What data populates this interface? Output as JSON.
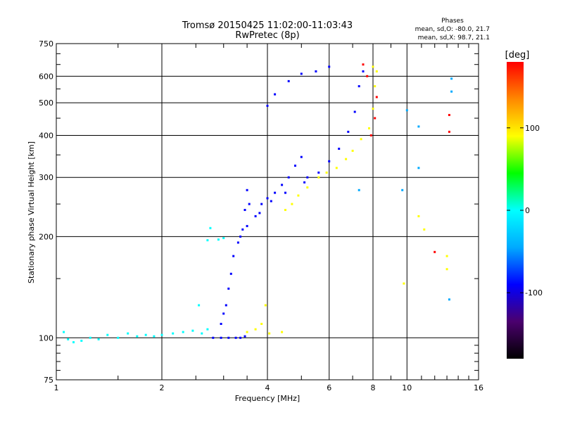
{
  "chart_data": {
    "type": "scatter",
    "title": "Tromsø 20150425 11:02:00-11:03:43",
    "subtitle": "RwPretec (8p)",
    "xlabel": "Frequency [MHz]",
    "ylabel": "Stationary phase Virtual Height [km]",
    "x_scale": "log",
    "y_scale": "log",
    "xlim": [
      1,
      16
    ],
    "ylim": [
      75,
      750
    ],
    "x_ticks": [
      1,
      2,
      4,
      6,
      8,
      10,
      16
    ],
    "y_ticks": [
      75,
      100,
      200,
      300,
      400,
      500,
      600,
      750
    ],
    "grid": true,
    "phases_box": {
      "title": "Phases",
      "line1": "mean, sd,O: -80.0, 21.7",
      "line2": "mean, sd,X:  98.7, 21.1"
    },
    "colorbar": {
      "label": "[deg]",
      "range": [
        -180,
        180
      ],
      "ticks": [
        "100",
        "0",
        "-100"
      ],
      "tick_values": [
        100,
        0,
        -100
      ],
      "colors": [
        "#000000",
        "#4b006e",
        "#0000ff",
        "#00aaff",
        "#00ffff",
        "#00ff00",
        "#ffff00",
        "#ff8800",
        "#ff0000"
      ]
    },
    "series": [
      {
        "points": [
          [
            1.05,
            104
          ],
          [
            1.08,
            99
          ],
          [
            1.12,
            97
          ],
          [
            1.18,
            98
          ],
          [
            1.25,
            100
          ],
          [
            1.32,
            99
          ],
          [
            1.4,
            102
          ],
          [
            1.5,
            100
          ],
          [
            1.6,
            103
          ],
          [
            1.7,
            101
          ],
          [
            1.8,
            102
          ],
          [
            1.9,
            101
          ],
          [
            2.0,
            102
          ],
          [
            2.15,
            103
          ],
          [
            2.3,
            104
          ],
          [
            2.45,
            105
          ],
          [
            2.6,
            103
          ],
          [
            2.7,
            106
          ],
          [
            2.55,
            125
          ],
          [
            2.7,
            195
          ],
          [
            2.75,
            212
          ],
          [
            2.9,
            196
          ],
          [
            3.0,
            198
          ]
        ],
        "phase": -20
      },
      {
        "points": [
          [
            2.8,
            100
          ],
          [
            2.95,
            100
          ],
          [
            3.1,
            100
          ],
          [
            3.25,
            100
          ],
          [
            3.35,
            100
          ],
          [
            3.45,
            101
          ],
          [
            2.95,
            110
          ],
          [
            3.0,
            118
          ],
          [
            3.05,
            125
          ],
          [
            3.1,
            140
          ],
          [
            3.15,
            155
          ],
          [
            3.2,
            175
          ],
          [
            3.3,
            192
          ],
          [
            3.4,
            210
          ],
          [
            3.45,
            240
          ],
          [
            3.5,
            275
          ],
          [
            3.55,
            250
          ],
          [
            3.7,
            230
          ],
          [
            3.85,
            250
          ],
          [
            4.0,
            260
          ],
          [
            4.2,
            270
          ],
          [
            4.4,
            285
          ],
          [
            4.6,
            300
          ],
          [
            4.8,
            325
          ],
          [
            5.0,
            345
          ],
          [
            5.2,
            300
          ],
          [
            5.6,
            310
          ],
          [
            6.0,
            335
          ],
          [
            6.4,
            365
          ],
          [
            6.8,
            410
          ],
          [
            7.1,
            470
          ],
          [
            7.3,
            560
          ],
          [
            7.5,
            620
          ],
          [
            4.0,
            490
          ],
          [
            4.2,
            530
          ],
          [
            4.6,
            580
          ],
          [
            5.0,
            610
          ],
          [
            5.5,
            620
          ],
          [
            6.0,
            640
          ],
          [
            3.35,
            200
          ],
          [
            3.5,
            215
          ],
          [
            3.8,
            235
          ],
          [
            4.1,
            255
          ],
          [
            4.5,
            270
          ],
          [
            5.1,
            290
          ]
        ],
        "phase": -95
      },
      {
        "points": [
          [
            3.5,
            104
          ],
          [
            3.7,
            106
          ],
          [
            3.85,
            110
          ],
          [
            3.95,
            125
          ],
          [
            4.05,
            103
          ],
          [
            4.4,
            104
          ],
          [
            4.5,
            240
          ],
          [
            4.7,
            250
          ],
          [
            4.9,
            265
          ],
          [
            5.2,
            280
          ],
          [
            5.6,
            300
          ],
          [
            5.9,
            310
          ],
          [
            6.3,
            320
          ],
          [
            6.7,
            340
          ],
          [
            7.0,
            360
          ],
          [
            7.4,
            390
          ],
          [
            7.8,
            420
          ],
          [
            8.0,
            480
          ],
          [
            8.1,
            560
          ],
          [
            8.2,
            620
          ],
          [
            8.0,
            640
          ],
          [
            10.8,
            230
          ],
          [
            11.2,
            210
          ],
          [
            13.0,
            160
          ],
          [
            13.0,
            175
          ],
          [
            9.8,
            145
          ]
        ],
        "phase": 100
      },
      {
        "points": [
          [
            7.9,
            400
          ],
          [
            8.1,
            450
          ],
          [
            8.2,
            520
          ],
          [
            7.7,
            600
          ],
          [
            12.0,
            180
          ],
          [
            13.2,
            410
          ],
          [
            13.2,
            460
          ],
          [
            7.5,
            650
          ]
        ],
        "phase": 160
      },
      {
        "points": [
          [
            7.3,
            275
          ],
          [
            9.7,
            275
          ],
          [
            10.0,
            475
          ],
          [
            10.8,
            320
          ],
          [
            10.8,
            425
          ],
          [
            13.2,
            130
          ],
          [
            13.4,
            590
          ],
          [
            13.4,
            540
          ]
        ],
        "phase": -60
      }
    ]
  }
}
